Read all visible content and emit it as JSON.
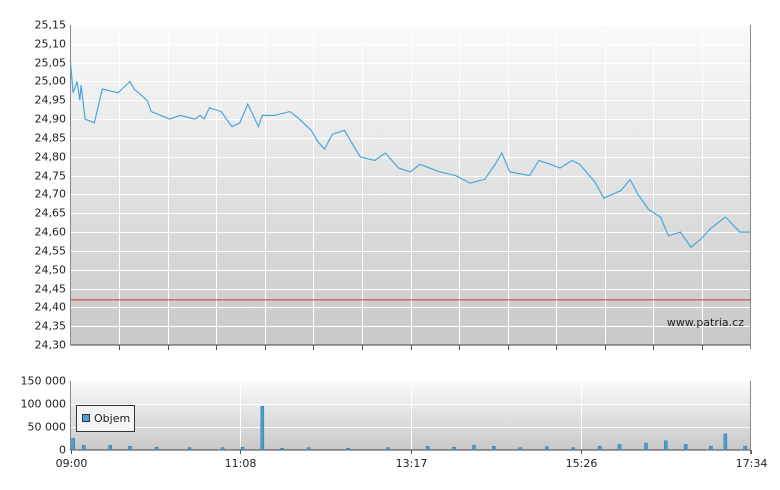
{
  "chart_data": [
    {
      "type": "line",
      "x": [
        "09:00",
        "09:02",
        "09:05",
        "09:07",
        "09:08",
        "09:11",
        "09:18",
        "09:20",
        "09:24",
        "09:36",
        "09:39",
        "09:45",
        "09:48",
        "09:58",
        "10:01",
        "10:15",
        "10:23",
        "10:34",
        "10:38",
        "10:41",
        "10:45",
        "10:54",
        "11:02",
        "11:08",
        "11:14",
        "11:22",
        "11:25",
        "11:34",
        "11:46",
        "11:53",
        "12:02",
        "12:07",
        "12:12",
        "12:18",
        "12:27",
        "12:39",
        "12:50",
        "12:58",
        "13:08",
        "13:17",
        "13:24",
        "13:39",
        "13:51",
        "14:02",
        "14:13",
        "14:21",
        "14:26",
        "14:32",
        "14:47",
        "14:54",
        "15:03",
        "15:10",
        "15:19",
        "15:25",
        "15:37",
        "15:43",
        "15:56",
        "16:03",
        "16:09",
        "16:17",
        "16:26",
        "16:32",
        "16:41",
        "16:49",
        "16:56",
        "17:04",
        "17:15",
        "17:26",
        "17:34"
      ],
      "series": [
        {
          "color": "#4aa8d8",
          "values": [
            25.05,
            24.97,
            25.0,
            24.95,
            24.99,
            24.9,
            24.89,
            24.92,
            24.98,
            24.97,
            24.98,
            25.0,
            24.98,
            24.95,
            24.92,
            24.9,
            24.91,
            24.9,
            24.91,
            24.9,
            24.93,
            24.92,
            24.88,
            24.89,
            24.94,
            24.88,
            24.91,
            24.91,
            24.92,
            24.9,
            24.87,
            24.84,
            24.82,
            24.86,
            24.87,
            24.8,
            24.79,
            24.81,
            24.77,
            24.76,
            24.78,
            24.76,
            24.75,
            24.73,
            24.74,
            24.78,
            24.81,
            24.76,
            24.75,
            24.79,
            24.78,
            24.77,
            24.79,
            24.78,
            24.73,
            24.69,
            24.71,
            24.74,
            24.7,
            24.66,
            24.64,
            24.59,
            24.6,
            24.56,
            24.58,
            24.61,
            24.64,
            24.6,
            24.6
          ]
        }
      ],
      "xlim": [
        "09:00",
        "17:34"
      ],
      "ylim": [
        24.3,
        25.15
      ],
      "yticks": [
        {
          "value": 24.3,
          "label": "24,30"
        },
        {
          "value": 24.35,
          "label": "24,35"
        },
        {
          "value": 24.4,
          "label": "24,40"
        },
        {
          "value": 24.45,
          "label": "24,45"
        },
        {
          "value": 24.5,
          "label": "24,50"
        },
        {
          "value": 24.55,
          "label": "24,55"
        },
        {
          "value": 24.6,
          "label": "24,60"
        },
        {
          "value": 24.65,
          "label": "24,65"
        },
        {
          "value": 24.7,
          "label": "24,70"
        },
        {
          "value": 24.75,
          "label": "24,75"
        },
        {
          "value": 24.8,
          "label": "24,80"
        },
        {
          "value": 24.85,
          "label": "24,85"
        },
        {
          "value": 24.9,
          "label": "24,90"
        },
        {
          "value": 24.95,
          "label": "24,95"
        },
        {
          "value": 25.0,
          "label": "25,00"
        },
        {
          "value": 25.05,
          "label": "25,05"
        },
        {
          "value": 25.1,
          "label": "25,10"
        },
        {
          "value": 25.15,
          "label": "25,15"
        }
      ],
      "reference_line": {
        "value": 24.42,
        "color": "#d03030"
      },
      "grid": true,
      "annotation": "www.patria.cz"
    },
    {
      "type": "bar",
      "x": [
        "09:02",
        "09:10",
        "09:30",
        "09:45",
        "10:05",
        "10:30",
        "10:55",
        "11:10",
        "11:25",
        "11:40",
        "12:00",
        "12:30",
        "13:00",
        "13:30",
        "13:50",
        "14:05",
        "14:20",
        "14:40",
        "15:00",
        "15:20",
        "15:40",
        "15:55",
        "16:15",
        "16:30",
        "16:45",
        "17:04",
        "17:15",
        "17:30"
      ],
      "series": [
        {
          "name": "Objem",
          "color": "#4a9fd4",
          "values": [
            25000,
            10000,
            10000,
            8000,
            6000,
            5000,
            5000,
            6000,
            95000,
            4000,
            5000,
            4000,
            5000,
            8000,
            6000,
            10000,
            8000,
            5000,
            7000,
            5000,
            8000,
            12000,
            15000,
            20000,
            12000,
            8000,
            35000,
            8000
          ]
        }
      ],
      "xlim": [
        "09:00",
        "17:34"
      ],
      "xticks": [
        "09:00",
        "11:08",
        "13:17",
        "15:26",
        "17:34"
      ],
      "ylim": [
        0,
        150000
      ],
      "yticks": [
        0,
        {
          "value": 50000,
          "label": "50 000"
        },
        {
          "value": 100000,
          "label": "100 000"
        },
        {
          "value": 150000,
          "label": "150 000"
        }
      ],
      "grid": true,
      "legend": "upper-left"
    }
  ]
}
